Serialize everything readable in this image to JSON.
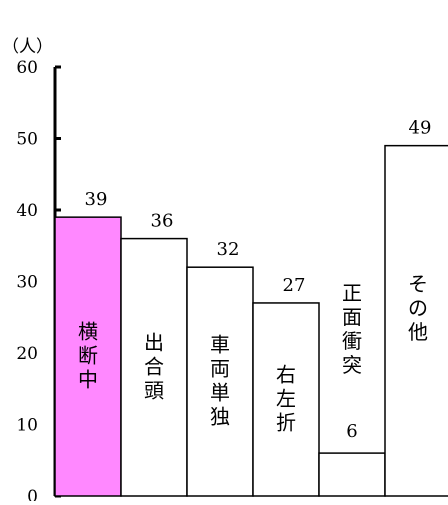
{
  "chart_data": {
    "type": "bar",
    "title": "",
    "ylabel": "（人）",
    "xlabel": "",
    "ylim": [
      0,
      60
    ],
    "yticks": [
      0,
      10,
      20,
      30,
      40,
      50,
      60
    ],
    "categories": [
      "横断中",
      "出合頭",
      "車両単独",
      "右左折",
      "正面衝突",
      "その他"
    ],
    "values": [
      39,
      36,
      32,
      27,
      6,
      49
    ],
    "bar_colors": [
      "#ff88ff",
      "#ffffff",
      "#ffffff",
      "#ffffff",
      "#ffffff",
      "#ffffff"
    ],
    "grid": false,
    "legend": "none",
    "category_labels_inside_bars": true,
    "orientation": "vertical-text"
  }
}
